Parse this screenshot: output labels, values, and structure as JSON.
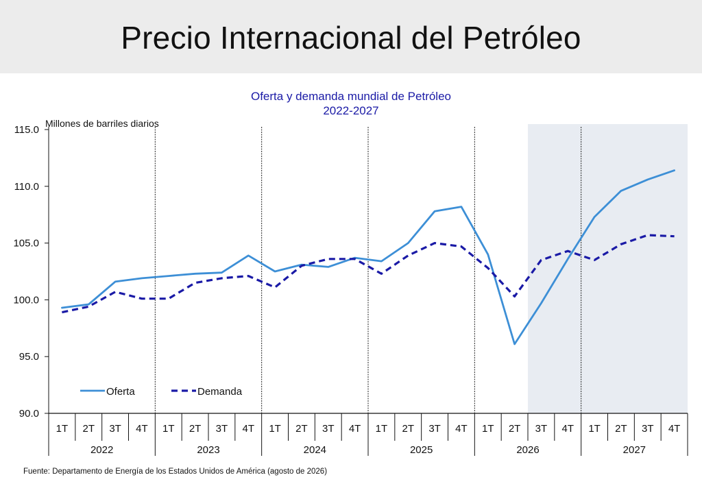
{
  "page_title": "Precio Internacional del Petróleo",
  "source": "Fuente: Departamento de Energía de los Estados Unidos de América (agosto de 2026)",
  "chart_data": {
    "type": "line",
    "title": "Oferta y demanda mundial de Petróleo",
    "subtitle": "2022-2027",
    "ylabel": "Millones de barriles diarios",
    "xlabel": "",
    "ylim": [
      90,
      115
    ],
    "yticks": [
      "90.0",
      "95.0",
      "100.0",
      "105.0",
      "110.0",
      "115.0"
    ],
    "years": [
      "2022",
      "2023",
      "2024",
      "2025",
      "2026",
      "2027"
    ],
    "quarters": [
      "1T",
      "2T",
      "3T",
      "4T"
    ],
    "categories": [
      "2022-1T",
      "2022-2T",
      "2022-3T",
      "2022-4T",
      "2023-1T",
      "2023-2T",
      "2023-3T",
      "2023-4T",
      "2024-1T",
      "2024-2T",
      "2024-3T",
      "2024-4T",
      "2025-1T",
      "2025-2T",
      "2025-3T",
      "2025-4T",
      "2026-1T",
      "2026-2T",
      "2026-3T",
      "2026-4T",
      "2027-1T",
      "2027-2T",
      "2027-3T",
      "2027-4T"
    ],
    "series": [
      {
        "name": "Oferta",
        "style": "solid",
        "color": "#3d8fd6",
        "values": [
          99.3,
          99.6,
          101.6,
          101.9,
          102.1,
          102.3,
          102.4,
          103.9,
          102.5,
          103.1,
          102.9,
          103.7,
          103.4,
          105.0,
          107.8,
          108.2,
          104.0,
          96.1,
          99.7,
          103.6,
          107.3,
          109.6,
          110.6,
          111.4
        ]
      },
      {
        "name": "Demanda",
        "style": "dashed",
        "color": "#1a1aa6",
        "values": [
          98.9,
          99.4,
          100.7,
          100.1,
          100.1,
          101.5,
          101.9,
          102.1,
          101.1,
          103.0,
          103.6,
          103.6,
          102.3,
          103.9,
          105.0,
          104.7,
          102.8,
          100.3,
          103.5,
          104.3,
          103.5,
          104.9,
          105.7,
          105.6
        ]
      }
    ],
    "forecast_shading_start": "2026-3T",
    "legend_position": "bottom-left",
    "colors": {
      "shading": "#e8ecf2",
      "axis": "#111111",
      "title": "#1a1aa6"
    }
  }
}
